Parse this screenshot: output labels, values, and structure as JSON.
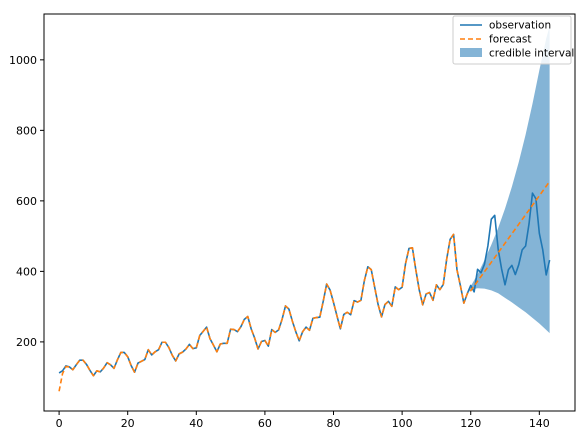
{
  "chart_data": {
    "type": "line",
    "title": "",
    "xlabel": "",
    "ylabel": "",
    "xlim": [
      -4.4,
      150.4
    ],
    "ylim": [
      4,
      1130
    ],
    "x_ticks": [
      0,
      20,
      40,
      60,
      80,
      100,
      120,
      140
    ],
    "y_ticks": [
      200,
      400,
      600,
      800,
      1000
    ],
    "grid": false,
    "legend_position": "top-right",
    "legend": {
      "observation": "observation",
      "forecast": "forecast",
      "interval": "credible interval"
    },
    "colors": {
      "observation": "#1f77b4",
      "forecast": "#ff7f0e",
      "interval": "#1f77b4"
    },
    "series": [
      {
        "name": "observation",
        "style": "solid",
        "x": [
          0,
          1,
          2,
          3,
          4,
          5,
          6,
          7,
          8,
          9,
          10,
          11,
          12,
          13,
          14,
          15,
          16,
          17,
          18,
          19,
          20,
          21,
          22,
          23,
          24,
          25,
          26,
          27,
          28,
          29,
          30,
          31,
          32,
          33,
          34,
          35,
          36,
          37,
          38,
          39,
          40,
          41,
          42,
          43,
          44,
          45,
          46,
          47,
          48,
          49,
          50,
          51,
          52,
          53,
          54,
          55,
          56,
          57,
          58,
          59,
          60,
          61,
          62,
          63,
          64,
          65,
          66,
          67,
          68,
          69,
          70,
          71,
          72,
          73,
          74,
          75,
          76,
          77,
          78,
          79,
          80,
          81,
          82,
          83,
          84,
          85,
          86,
          87,
          88,
          89,
          90,
          91,
          92,
          93,
          94,
          95,
          96,
          97,
          98,
          99,
          100,
          101,
          102,
          103,
          104,
          105,
          106,
          107,
          108,
          109,
          110,
          111,
          112,
          113,
          114,
          115,
          116,
          117,
          118,
          119,
          120,
          121,
          122,
          123,
          124,
          125,
          126,
          127,
          128,
          129,
          130,
          131,
          132,
          133,
          134,
          135,
          136,
          137,
          138,
          139,
          140,
          141,
          142,
          143
        ],
        "values": [
          112,
          118,
          132,
          129,
          121,
          135,
          148,
          148,
          136,
          119,
          104,
          118,
          115,
          126,
          141,
          135,
          125,
          149,
          170,
          170,
          158,
          133,
          114,
          140,
          145,
          150,
          178,
          163,
          172,
          178,
          199,
          199,
          184,
          162,
          146,
          166,
          171,
          180,
          193,
          181,
          183,
          218,
          230,
          242,
          209,
          191,
          172,
          194,
          196,
          196,
          236,
          235,
          229,
          243,
          264,
          272,
          237,
          211,
          180,
          201,
          204,
          188,
          235,
          227,
          234,
          264,
          302,
          293,
          259,
          229,
          203,
          229,
          242,
          233,
          267,
          269,
          270,
          315,
          364,
          347,
          312,
          274,
          237,
          278,
          284,
          277,
          317,
          313,
          318,
          374,
          413,
          405,
          355,
          306,
          271,
          306,
          315,
          301,
          356,
          348,
          355,
          422,
          465,
          467,
          404,
          347,
          305,
          336,
          340,
          318,
          362,
          348,
          363,
          435,
          491,
          505,
          404,
          359,
          310,
          337,
          360,
          342,
          406,
          396,
          420,
          472,
          548,
          559,
          463,
          407,
          362,
          405,
          417,
          391,
          419,
          461,
          472,
          535,
          622,
          606,
          508,
          461,
          390,
          432
        ]
      },
      {
        "name": "forecast",
        "style": "dashed",
        "x": [
          0,
          1,
          2,
          3,
          4,
          5,
          6,
          7,
          8,
          9,
          10,
          11,
          12,
          13,
          14,
          15,
          16,
          17,
          18,
          19,
          20,
          21,
          22,
          23,
          24,
          25,
          26,
          27,
          28,
          29,
          30,
          31,
          32,
          33,
          34,
          35,
          36,
          37,
          38,
          39,
          40,
          41,
          42,
          43,
          44,
          45,
          46,
          47,
          48,
          49,
          50,
          51,
          52,
          53,
          54,
          55,
          56,
          57,
          58,
          59,
          60,
          61,
          62,
          63,
          64,
          65,
          66,
          67,
          68,
          69,
          70,
          71,
          72,
          73,
          74,
          75,
          76,
          77,
          78,
          79,
          80,
          81,
          82,
          83,
          84,
          85,
          86,
          87,
          88,
          89,
          90,
          91,
          92,
          93,
          94,
          95,
          96,
          97,
          98,
          99,
          100,
          101,
          102,
          103,
          104,
          105,
          106,
          107,
          108,
          109,
          110,
          111,
          112,
          113,
          114,
          115,
          116,
          117,
          118,
          119,
          120,
          143
        ],
        "values": [
          60,
          110,
          130,
          129,
          121,
          135,
          148,
          148,
          136,
          119,
          104,
          118,
          115,
          126,
          141,
          135,
          125,
          149,
          170,
          170,
          158,
          133,
          114,
          140,
          145,
          150,
          178,
          163,
          172,
          178,
          199,
          199,
          184,
          162,
          146,
          166,
          171,
          180,
          193,
          181,
          183,
          218,
          230,
          242,
          209,
          191,
          172,
          194,
          196,
          196,
          236,
          235,
          229,
          243,
          264,
          272,
          237,
          211,
          180,
          201,
          204,
          188,
          235,
          227,
          234,
          264,
          302,
          293,
          259,
          229,
          203,
          229,
          242,
          233,
          267,
          269,
          270,
          315,
          364,
          347,
          312,
          274,
          237,
          278,
          284,
          277,
          317,
          313,
          318,
          374,
          413,
          405,
          355,
          306,
          271,
          306,
          315,
          301,
          356,
          348,
          355,
          422,
          465,
          467,
          404,
          347,
          305,
          336,
          340,
          318,
          362,
          348,
          363,
          435,
          491,
          505,
          404,
          359,
          310,
          337,
          345,
          655
        ]
      }
    ],
    "credible_interval": {
      "x": [
        119,
        120,
        122,
        124,
        126,
        128,
        130,
        132,
        134,
        136,
        138,
        140,
        142,
        143
      ],
      "upper": [
        337,
        358,
        392,
        432,
        475,
        523,
        578,
        640,
        710,
        788,
        875,
        970,
        1060,
        1095
      ],
      "lower": [
        337,
        348,
        352,
        351,
        346,
        338,
        325,
        312,
        298,
        284,
        268,
        252,
        234,
        225
      ]
    }
  }
}
